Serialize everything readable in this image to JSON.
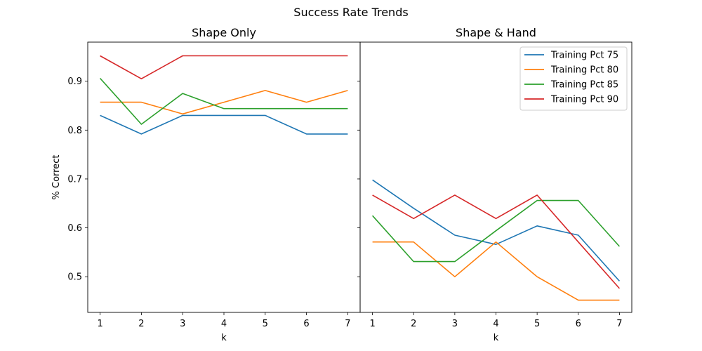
{
  "figure": {
    "title": "Success Rate Trends"
  },
  "chart_data": [
    {
      "type": "line",
      "title": "Shape Only",
      "xlabel": "k",
      "ylabel": "% Correct",
      "x": [
        1,
        2,
        3,
        4,
        5,
        6,
        7
      ],
      "xlim": [
        0.7,
        7.3
      ],
      "ylim": [
        0.427,
        0.98
      ],
      "yticks": [
        0.5,
        0.6,
        0.7,
        0.8,
        0.9
      ],
      "grid": false,
      "legend": null,
      "series": [
        {
          "name": "Training Pct 75",
          "color": "#1f77b4",
          "values": [
            0.83,
            0.792,
            0.83,
            0.83,
            0.83,
            0.792,
            0.792
          ]
        },
        {
          "name": "Training Pct 80",
          "color": "#ff7f0e",
          "values": [
            0.857,
            0.857,
            0.833,
            0.857,
            0.881,
            0.857,
            0.881
          ]
        },
        {
          "name": "Training Pct 85",
          "color": "#2ca02c",
          "values": [
            0.906,
            0.812,
            0.875,
            0.844,
            0.844,
            0.844,
            0.844
          ]
        },
        {
          "name": "Training Pct 90",
          "color": "#d62728",
          "values": [
            0.952,
            0.905,
            0.952,
            0.952,
            0.952,
            0.952,
            0.952
          ]
        }
      ]
    },
    {
      "type": "line",
      "title": "Shape & Hand",
      "xlabel": "k",
      "ylabel": "",
      "x": [
        1,
        2,
        3,
        4,
        5,
        6,
        7
      ],
      "xlim": [
        0.7,
        7.3
      ],
      "ylim": [
        0.427,
        0.98
      ],
      "yticks": [
        0.5,
        0.6,
        0.7,
        0.8,
        0.9
      ],
      "grid": false,
      "legend": "upper right",
      "series": [
        {
          "name": "Training Pct 75",
          "color": "#1f77b4",
          "values": [
            0.698,
            0.64,
            0.585,
            0.566,
            0.604,
            0.585,
            0.491
          ]
        },
        {
          "name": "Training Pct 80",
          "color": "#ff7f0e",
          "values": [
            0.571,
            0.571,
            0.5,
            0.571,
            0.5,
            0.452,
            0.452
          ]
        },
        {
          "name": "Training Pct 85",
          "color": "#2ca02c",
          "values": [
            0.625,
            0.531,
            0.531,
            0.594,
            0.656,
            0.656,
            0.562
          ]
        },
        {
          "name": "Training Pct 90",
          "color": "#d62728",
          "values": [
            0.667,
            0.619,
            0.667,
            0.619,
            0.667,
            0.571,
            0.476
          ]
        }
      ]
    }
  ]
}
